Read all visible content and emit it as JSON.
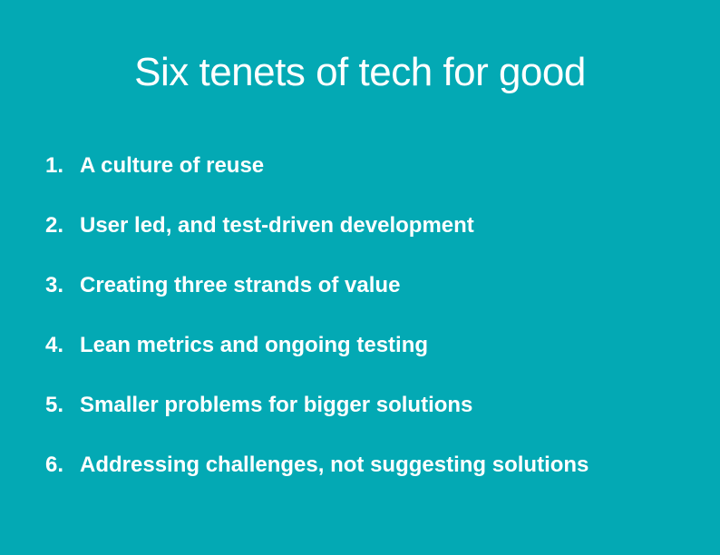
{
  "slide": {
    "title": "Six tenets of tech for good",
    "background_color": "#03A9B4",
    "text_color": "#FFFFFF",
    "tenets": [
      {
        "number": "1.",
        "text": "A culture of reuse"
      },
      {
        "number": "2.",
        "text": "User led, and test-driven development"
      },
      {
        "number": "3.",
        "text": "Creating three strands of value"
      },
      {
        "number": "4.",
        "text": "Lean metrics and ongoing testing"
      },
      {
        "number": "5.",
        "text": "Smaller problems for bigger solutions"
      },
      {
        "number": "6.",
        "text": "Addressing challenges, not suggesting solutions"
      }
    ]
  }
}
